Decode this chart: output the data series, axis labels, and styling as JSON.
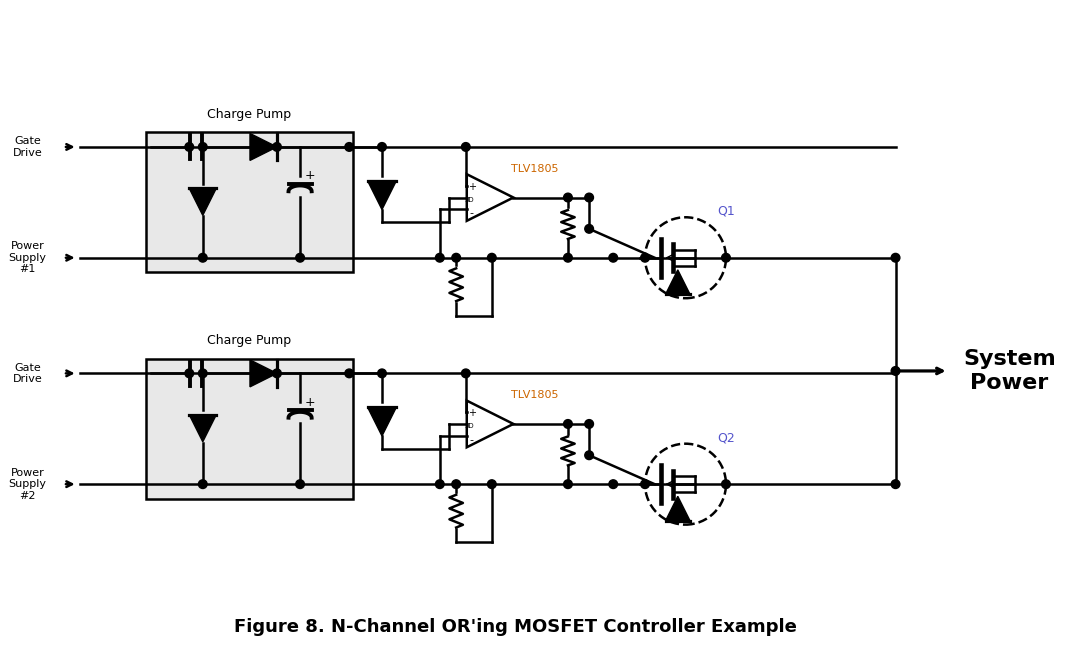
{
  "title": "Figure 8. N-Channel OR'ing MOSFET Controller Example",
  "title_fontsize": 13,
  "title_color": "#000000",
  "bg_color": "#ffffff",
  "line_color": "#000000",
  "line_width": 1.8,
  "charge_pump_fill": "#e8e8e8",
  "charge_pump_edge": "#000000",
  "tlv_color": "#cc6600",
  "q_color": "#5555cc",
  "system_power_text": "System\nPower",
  "system_power_fontsize": 16,
  "circuit1_labels": {
    "charge_pump": "Charge Pump",
    "gate_drive": "Gate\nDrive",
    "power_supply": "Power\nSupply\n#1",
    "tlv": "TLV1805",
    "q": "Q1"
  },
  "circuit2_labels": {
    "charge_pump": "Charge Pump",
    "gate_drive": "Gate\nDrive",
    "power_supply": "Power\nSupply\n#2",
    "tlv": "TLV1805",
    "q": "Q2"
  }
}
